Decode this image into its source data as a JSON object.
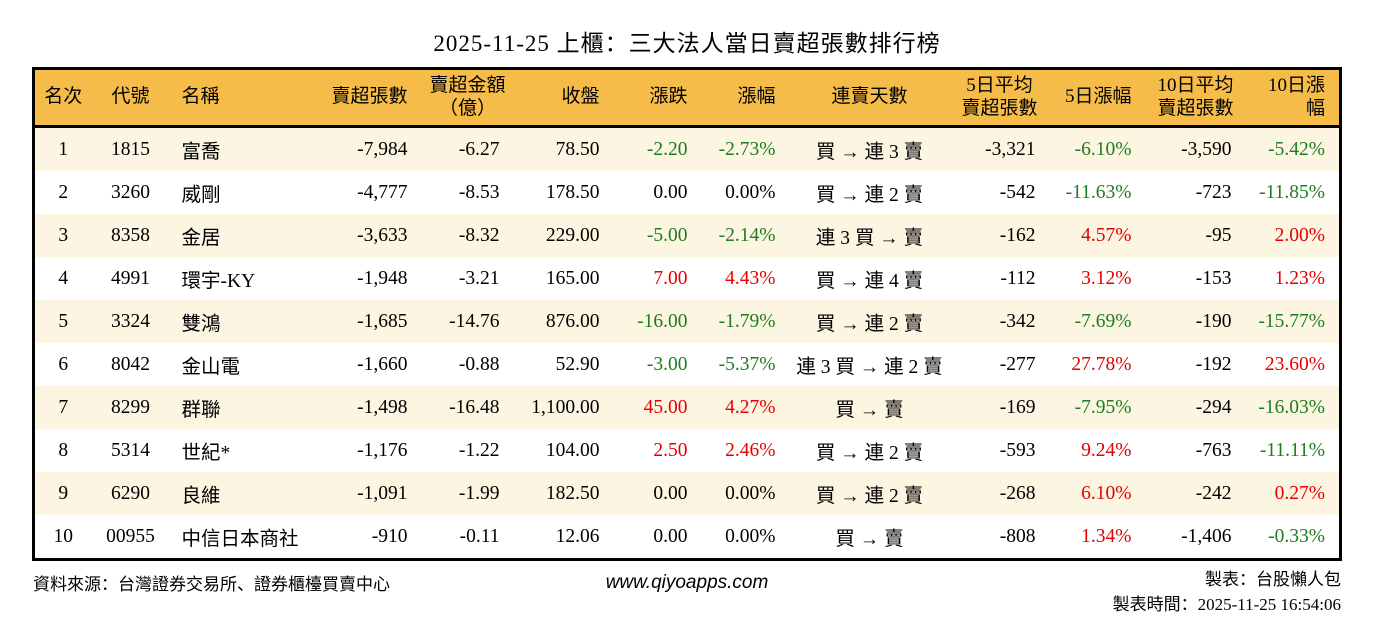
{
  "title": "2025-11-25 上櫃：三大法人當日賣超張數排行榜",
  "chart_data": {
    "type": "table",
    "title": "2025-11-25 上櫃：三大法人當日賣超張數排行榜",
    "headers": [
      "名次",
      "代號",
      "名稱",
      "賣超張數",
      "賣超金額\n（億）",
      "收盤",
      "漲跌",
      "漲幅",
      "連賣天數",
      "5日平均\n賣超張數",
      "5日漲幅",
      "10日平均\n賣超張數",
      "10日漲幅"
    ],
    "rows": [
      [
        "1",
        "1815",
        "富喬",
        "-7,984",
        "-6.27",
        "78.50",
        "-2.20",
        "-2.73%",
        "買 → 連 3 賣",
        "-3,321",
        "-6.10%",
        "-3,590",
        "-5.42%"
      ],
      [
        "2",
        "3260",
        "威剛",
        "-4,777",
        "-8.53",
        "178.50",
        "0.00",
        "0.00%",
        "買 → 連 2 賣",
        "-542",
        "-11.63%",
        "-723",
        "-11.85%"
      ],
      [
        "3",
        "8358",
        "金居",
        "-3,633",
        "-8.32",
        "229.00",
        "-5.00",
        "-2.14%",
        "連 3 買 → 賣",
        "-162",
        "4.57%",
        "-95",
        "2.00%"
      ],
      [
        "4",
        "4991",
        "環宇-KY",
        "-1,948",
        "-3.21",
        "165.00",
        "7.00",
        "4.43%",
        "買 → 連 4 賣",
        "-112",
        "3.12%",
        "-153",
        "1.23%"
      ],
      [
        "5",
        "3324",
        "雙鴻",
        "-1,685",
        "-14.76",
        "876.00",
        "-16.00",
        "-1.79%",
        "買 → 連 2 賣",
        "-342",
        "-7.69%",
        "-190",
        "-15.77%"
      ],
      [
        "6",
        "8042",
        "金山電",
        "-1,660",
        "-0.88",
        "52.90",
        "-3.00",
        "-5.37%",
        "連 3 買 → 連 2 賣",
        "-277",
        "27.78%",
        "-192",
        "23.60%"
      ],
      [
        "7",
        "8299",
        "群聯",
        "-1,498",
        "-16.48",
        "1,100.00",
        "45.00",
        "4.27%",
        "買 → 賣",
        "-169",
        "-7.95%",
        "-294",
        "-16.03%"
      ],
      [
        "8",
        "5314",
        "世紀*",
        "-1,176",
        "-1.22",
        "104.00",
        "2.50",
        "2.46%",
        "買 → 連 2 賣",
        "-593",
        "9.24%",
        "-763",
        "-11.11%"
      ],
      [
        "9",
        "6290",
        "良維",
        "-1,091",
        "-1.99",
        "182.50",
        "0.00",
        "0.00%",
        "買 → 連 2 賣",
        "-268",
        "6.10%",
        "-242",
        "0.27%"
      ],
      [
        "10",
        "00955",
        "中信日本商社",
        "-910",
        "-0.11",
        "12.06",
        "0.00",
        "0.00%",
        "買 → 賣",
        "-808",
        "1.34%",
        "-1,406",
        "-0.33%"
      ]
    ],
    "color_rule": "漲跌/漲幅/5日漲幅/10日漲幅：正值紅、負值綠、零黑"
  },
  "footer": {
    "source": "資料來源：台灣證券交易所、證券櫃檯買賣中心",
    "website": "www.qiyoapps.com",
    "maker": "製表：台股懶人包",
    "generated_at": "製表時間：2025-11-25 16:54:06"
  },
  "colors": {
    "header_bg": "#F6BC49",
    "row_alt_bg": "#FBF5E2",
    "row_bg": "#FFFFFF",
    "up_red": "#E60000",
    "down_green": "#1E7D1E",
    "border": "#000000"
  }
}
